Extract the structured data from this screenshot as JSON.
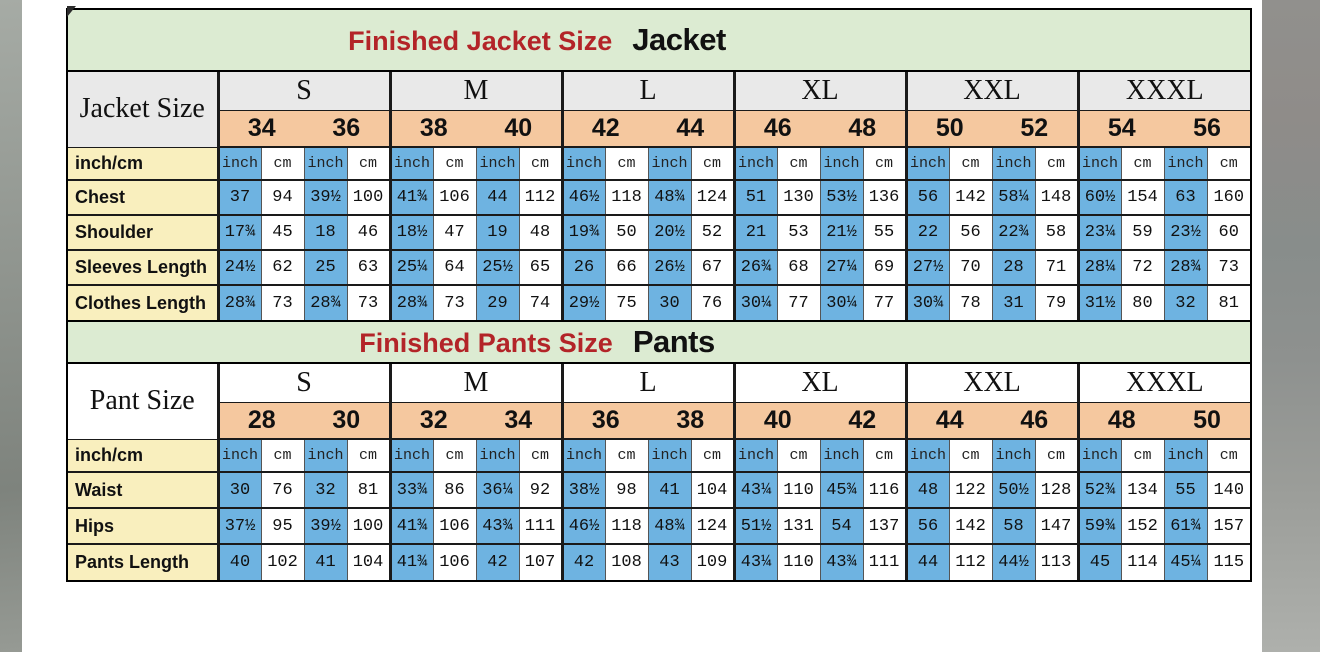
{
  "colors": {
    "green": "#dcebd2",
    "gray_row": "#e9e9e9",
    "peach": "#f5c89f",
    "yellow": "#f9efbe",
    "blue": "#6eb3e1",
    "title_red": "#b32428",
    "border": "#1a1a1a"
  },
  "units": {
    "inch": "inch",
    "cm": "cm"
  },
  "jacket": {
    "title_red": "Finished Jacket Size",
    "title_black": "Jacket",
    "corner": "Jacket Size",
    "unit_label": "inch/cm",
    "groups": [
      {
        "size": "S",
        "nums": [
          "34",
          "36"
        ]
      },
      {
        "size": "M",
        "nums": [
          "38",
          "40"
        ]
      },
      {
        "size": "L",
        "nums": [
          "42",
          "44"
        ]
      },
      {
        "size": "XL",
        "nums": [
          "46",
          "48"
        ]
      },
      {
        "size": "XXL",
        "nums": [
          "50",
          "52"
        ]
      },
      {
        "size": "XXXL",
        "nums": [
          "54",
          "56"
        ]
      }
    ],
    "rows": [
      {
        "label": "Chest",
        "inch": [
          "37",
          "39½",
          "41¾",
          "44",
          "46½",
          "48¾",
          "51",
          "53½",
          "56",
          "58¼",
          "60½",
          "63"
        ],
        "cm": [
          "94",
          "100",
          "106",
          "112",
          "118",
          "124",
          "130",
          "136",
          "142",
          "148",
          "154",
          "160"
        ]
      },
      {
        "label": "Shoulder",
        "inch": [
          "17¾",
          "18",
          "18½",
          "19",
          "19¾",
          "20½",
          "21",
          "21½",
          "22",
          "22¾",
          "23¼",
          "23½"
        ],
        "cm": [
          "45",
          "46",
          "47",
          "48",
          "50",
          "52",
          "53",
          "55",
          "56",
          "58",
          "59",
          "60"
        ]
      },
      {
        "label": "Sleeves Length",
        "inch": [
          "24½",
          "25",
          "25¼",
          "25½",
          "26",
          "26½",
          "26¾",
          "27¼",
          "27½",
          "28",
          "28¼",
          "28¾"
        ],
        "cm": [
          "62",
          "63",
          "64",
          "65",
          "66",
          "67",
          "68",
          "69",
          "70",
          "71",
          "72",
          "73"
        ]
      },
      {
        "label": "Clothes Length",
        "inch": [
          "28¾",
          "28¾",
          "28¾",
          "29",
          "29½",
          "30",
          "30¼",
          "30¼",
          "30¾",
          "31",
          "31½",
          "32"
        ],
        "cm": [
          "73",
          "73",
          "73",
          "74",
          "75",
          "76",
          "77",
          "77",
          "78",
          "79",
          "80",
          "81"
        ]
      }
    ]
  },
  "pants": {
    "title_red": "Finished Pants Size",
    "title_black": "Pants",
    "corner": "Pant Size",
    "unit_label": "inch/cm",
    "groups": [
      {
        "size": "S",
        "nums": [
          "28",
          "30"
        ]
      },
      {
        "size": "M",
        "nums": [
          "32",
          "34"
        ]
      },
      {
        "size": "L",
        "nums": [
          "36",
          "38"
        ]
      },
      {
        "size": "XL",
        "nums": [
          "40",
          "42"
        ]
      },
      {
        "size": "XXL",
        "nums": [
          "44",
          "46"
        ]
      },
      {
        "size": "XXXL",
        "nums": [
          "48",
          "50"
        ]
      }
    ],
    "rows": [
      {
        "label": "Waist",
        "inch": [
          "30",
          "32",
          "33¾",
          "36¼",
          "38½",
          "41",
          "43¼",
          "45¾",
          "48",
          "50½",
          "52¾",
          "55"
        ],
        "cm": [
          "76",
          "81",
          "86",
          "92",
          "98",
          "104",
          "110",
          "116",
          "122",
          "128",
          "134",
          "140"
        ]
      },
      {
        "label": "Hips",
        "inch": [
          "37½",
          "39½",
          "41¾",
          "43¾",
          "46½",
          "48¾",
          "51½",
          "54",
          "56",
          "58",
          "59¾",
          "61¾"
        ],
        "cm": [
          "95",
          "100",
          "106",
          "111",
          "118",
          "124",
          "131",
          "137",
          "142",
          "147",
          "152",
          "157"
        ]
      },
      {
        "label": "Pants Length",
        "inch": [
          "40",
          "41",
          "41¾",
          "42",
          "42",
          "43",
          "43¼",
          "43¾",
          "44",
          "44½",
          "45",
          "45¼"
        ],
        "cm": [
          "102",
          "104",
          "106",
          "107",
          "108",
          "109",
          "110",
          "111",
          "112",
          "113",
          "114",
          "115"
        ]
      }
    ]
  }
}
